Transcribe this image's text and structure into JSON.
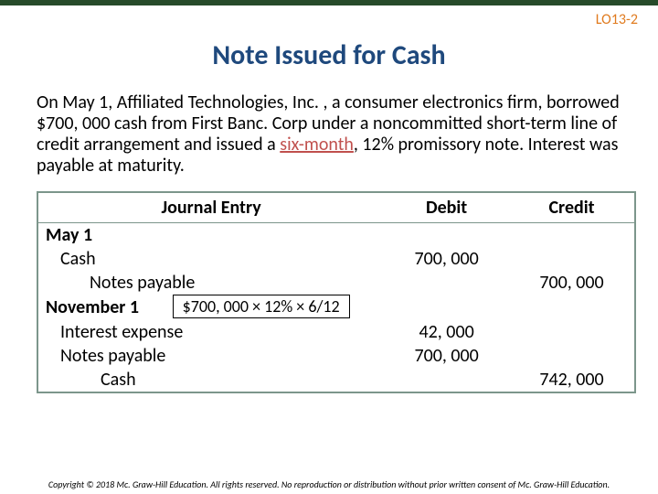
{
  "lo_tag": "LO13-2",
  "title": "Note Issued for Cash",
  "body": {
    "pre": "On May 1, Affiliated Technologies, Inc. , a consumer electronics firm, borrowed $700, 000 cash from First Banc. Corp under a noncommitted short-term line of credit arrangement and issued a ",
    "emph": "six-month",
    "post": ", 12% promissory note. Interest was payable at maturity."
  },
  "table": {
    "headers": {
      "desc": "Journal Entry",
      "debit": "Debit",
      "credit": "Credit"
    },
    "rows": [
      {
        "date": "May 1"
      },
      {
        "desc": "Cash",
        "debit": "700, 000",
        "indent": 1
      },
      {
        "desc": "Notes payable",
        "credit": "700, 000",
        "indent": 2
      },
      {
        "date": "November 1",
        "calc": "$700, 000 × 12% × 6/12"
      },
      {
        "desc": "Interest expense",
        "debit": "42, 000",
        "indent": 1
      },
      {
        "desc": "Notes payable",
        "debit": "700, 000",
        "indent": 1
      },
      {
        "desc": "Cash",
        "credit": "742, 000",
        "indent": 3
      }
    ]
  },
  "copyright": "Copyright © 2018 Mc. Graw-Hill Education. All rights reserved. No reproduction or distribution without prior written consent of Mc. Graw-Hill Education.",
  "colors": {
    "topbar": "#274b2a",
    "lo_tag": "#e07b1f",
    "title": "#1f497d",
    "emph": "#c0504d",
    "table_border": "#7c968b"
  }
}
